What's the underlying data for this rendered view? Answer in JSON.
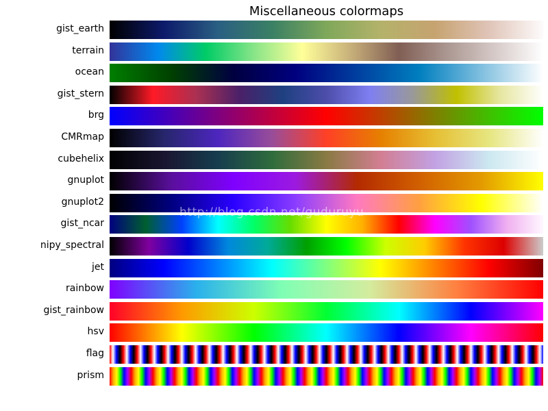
{
  "chart_data": {
    "type": "heatmap",
    "title": "Miscellaneous colormaps",
    "colormaps": [
      {
        "name": "gist_earth",
        "stops": [
          "#000000",
          "#0d1a6b",
          "#2a5f82",
          "#3a8064",
          "#7fa85a",
          "#b4b26a",
          "#c6a370",
          "#e0c4b8",
          "#fdfbfb"
        ]
      },
      {
        "name": "terrain",
        "stops": [
          "#333399",
          "#0088ee",
          "#00cc66",
          "#88e588",
          "#ffff99",
          "#c8b07a",
          "#805e54",
          "#ab9791",
          "#d6cac8",
          "#ffffff"
        ]
      },
      {
        "name": "ocean",
        "stops": [
          "#007f00",
          "#004000",
          "#000040",
          "#00007f",
          "#003f9f",
          "#007fbf",
          "#80bfdf",
          "#ffffff"
        ]
      },
      {
        "name": "gist_stern",
        "stops": [
          "#000000",
          "#ff1a26",
          "#aa3052",
          "#4a2068",
          "#1e4080",
          "#4d4daa",
          "#7f7ff2",
          "#999999",
          "#c0c000",
          "#e6e6a0",
          "#ffffff"
        ]
      },
      {
        "name": "brg",
        "stops": [
          "#0000ff",
          "#7f007f",
          "#ff0000",
          "#7f7f00",
          "#00ff00"
        ]
      },
      {
        "name": "CMRmap",
        "stops": [
          "#000000",
          "#26266b",
          "#4d26bf",
          "#994d99",
          "#ff4026",
          "#e68000",
          "#e6bf33",
          "#e6e680",
          "#ffffff"
        ]
      },
      {
        "name": "cubehelix",
        "stops": [
          "#000000",
          "#1a1530",
          "#163d4e",
          "#2f6c3c",
          "#8a7a43",
          "#d27e92",
          "#c2a1e3",
          "#cce8f0",
          "#ffffff"
        ]
      },
      {
        "name": "gnuplot",
        "stops": [
          "#000000",
          "#5a0f9c",
          "#7f00ff",
          "#9c1ae0",
          "#b32a00",
          "#d16000",
          "#e39a00",
          "#ffff00"
        ]
      },
      {
        "name": "gnuplot2",
        "stops": [
          "#000000",
          "#000080",
          "#2a00ff",
          "#8b3dff",
          "#ff7ac0",
          "#ffa040",
          "#ffff00",
          "#ffffff"
        ]
      },
      {
        "name": "gist_ncar",
        "stops": [
          "#000080",
          "#005f30",
          "#0040ff",
          "#00ffff",
          "#00ff66",
          "#66dd00",
          "#ffff00",
          "#ffb000",
          "#ff0000",
          "#ff00ff",
          "#a050ff",
          "#f0b0f0",
          "#fff8ff"
        ]
      },
      {
        "name": "nipy_spectral",
        "stops": [
          "#000000",
          "#8000a0",
          "#0000cc",
          "#0088dd",
          "#00aa99",
          "#00a000",
          "#00ff00",
          "#ccff00",
          "#ffcc00",
          "#ff3300",
          "#dd0000",
          "#cccccc"
        ]
      },
      {
        "name": "jet",
        "stops": [
          "#000080",
          "#0000ff",
          "#0080ff",
          "#00ffff",
          "#80ff80",
          "#ffff00",
          "#ff8000",
          "#ff0000",
          "#800000"
        ]
      },
      {
        "name": "rainbow",
        "stops": [
          "#8000ff",
          "#2ab0ec",
          "#80ffb4",
          "#d4ec9e",
          "#ff8040",
          "#ff0000"
        ]
      },
      {
        "name": "gist_rainbow",
        "stops": [
          "#ff0029",
          "#ff9900",
          "#ccff00",
          "#00ff33",
          "#00ffff",
          "#0000ff",
          "#ff00ff"
        ]
      },
      {
        "name": "hsv",
        "stops": [
          "#ff0000",
          "#ffff00",
          "#00ff00",
          "#00ffff",
          "#0000ff",
          "#ff00ff",
          "#ff0000"
        ]
      },
      {
        "name": "flag",
        "repeat": 31.5,
        "stops": [
          "#ff0000",
          "#ffffff",
          "#0000ff",
          "#000000",
          "#ff0000"
        ]
      },
      {
        "name": "prism",
        "repeat": 20,
        "stops": [
          "#ff0000",
          "#ffaa00",
          "#ffff00",
          "#00ff00",
          "#0000ff",
          "#aa00ff",
          "#ff0000"
        ]
      }
    ]
  },
  "watermark": "http://blog.csdn.net/guduruyu"
}
